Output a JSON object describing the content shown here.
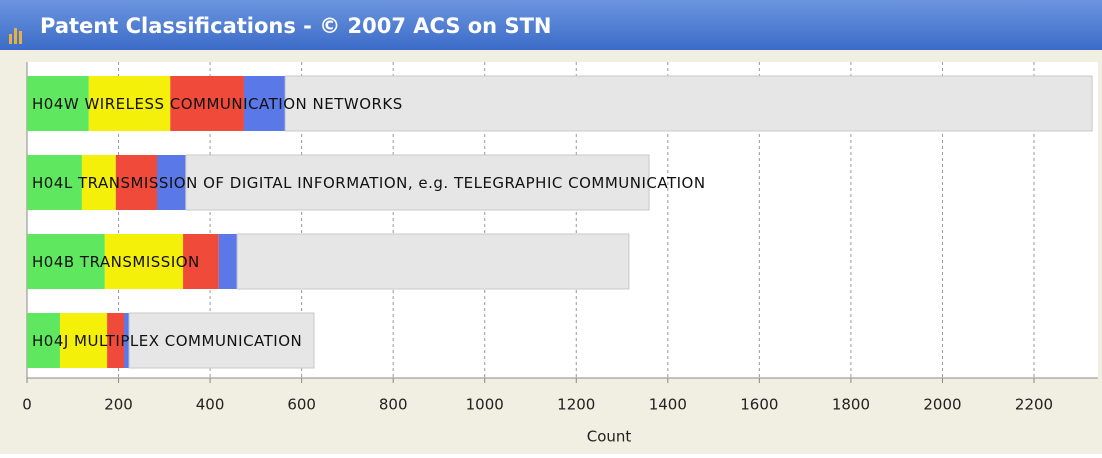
{
  "chart_data": {
    "type": "stacked_barh",
    "title": "Patent Classifications - © 2007 ACS on STN",
    "xlabel": "Count",
    "categories": [
      "H04W WIRELESS COMMUNICATION NETWORKS",
      "H04L TRANSMISSION OF DIGITAL INFORMATION, e.g. TELEGRAPHIC COMMUNICATION",
      "H04B  TRANSMISSION",
      "H04J MULTIPLEX COMMUNICATION"
    ],
    "series": [
      {
        "color": "#5fe85f",
        "values": [
          135,
          120,
          170,
          72
        ]
      },
      {
        "color": "#f4f00a",
        "values": [
          178,
          74,
          171,
          103
        ]
      },
      {
        "color": "#f04a3a",
        "values": [
          161,
          90,
          78,
          37
        ]
      },
      {
        "color": "#5a78e8",
        "values": [
          90,
          63,
          40,
          11
        ]
      },
      {
        "color": "#e6e6e6",
        "values": [
          1763,
          1012,
          856,
          404
        ]
      }
    ],
    "xlim": [
      0,
      2340
    ],
    "xticks": [
      0,
      200,
      400,
      600,
      800,
      1000,
      1200,
      1400,
      1600,
      1800,
      2000,
      2200
    ],
    "grid": true
  }
}
